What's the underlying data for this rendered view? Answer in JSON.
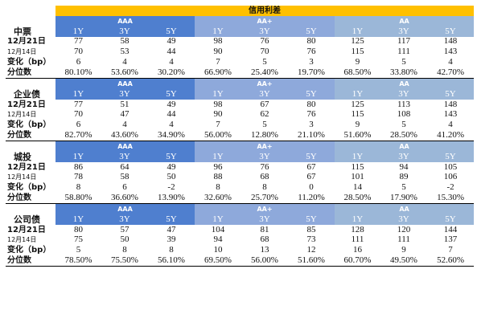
{
  "title": "信用利差",
  "groups": [
    "AAA",
    "AA+",
    "AA"
  ],
  "tenors": [
    "1Y",
    "3Y",
    "5Y"
  ],
  "row_labels": {
    "d1": "12月21日",
    "d2": "12月14日",
    "chg": "变化（bp）",
    "pct": "分位数"
  },
  "sections": [
    {
      "name": "中票",
      "d1": [
        "77",
        "58",
        "49",
        "98",
        "76",
        "80",
        "125",
        "117",
        "148"
      ],
      "d2": [
        "70",
        "53",
        "44",
        "90",
        "70",
        "76",
        "115",
        "111",
        "143"
      ],
      "chg": [
        "6",
        "4",
        "4",
        "7",
        "5",
        "3",
        "9",
        "5",
        "4"
      ],
      "pct": [
        "80.10%",
        "53.60%",
        "30.20%",
        "66.90%",
        "25.40%",
        "19.70%",
        "68.50%",
        "33.80%",
        "42.70%"
      ]
    },
    {
      "name": "企业债",
      "d1": [
        "77",
        "51",
        "49",
        "98",
        "67",
        "80",
        "125",
        "113",
        "148"
      ],
      "d2": [
        "70",
        "47",
        "44",
        "90",
        "62",
        "76",
        "115",
        "108",
        "143"
      ],
      "chg": [
        "6",
        "4",
        "4",
        "7",
        "5",
        "3",
        "9",
        "5",
        "4"
      ],
      "pct": [
        "82.70%",
        "43.60%",
        "34.90%",
        "56.00%",
        "12.80%",
        "21.10%",
        "51.60%",
        "28.50%",
        "41.20%"
      ]
    },
    {
      "name": "城投",
      "d1": [
        "86",
        "64",
        "49",
        "96",
        "76",
        "67",
        "115",
        "94",
        "105"
      ],
      "d2": [
        "78",
        "58",
        "50",
        "88",
        "68",
        "67",
        "101",
        "89",
        "106"
      ],
      "chg": [
        "8",
        "6",
        "-2",
        "8",
        "8",
        "0",
        "14",
        "5",
        "-2"
      ],
      "pct": [
        "58.80%",
        "36.60%",
        "13.90%",
        "32.60%",
        "25.70%",
        "11.20%",
        "28.50%",
        "17.90%",
        "15.30%"
      ]
    },
    {
      "name": "公司债",
      "d1": [
        "80",
        "57",
        "47",
        "104",
        "81",
        "85",
        "128",
        "120",
        "144"
      ],
      "d2": [
        "75",
        "50",
        "39",
        "94",
        "68",
        "73",
        "111",
        "111",
        "137"
      ],
      "chg": [
        "5",
        "8",
        "8",
        "10",
        "13",
        "12",
        "16",
        "9",
        "7"
      ],
      "pct": [
        "78.50%",
        "75.50%",
        "56.10%",
        "69.50%",
        "56.00%",
        "51.60%",
        "60.70%",
        "49.50%",
        "52.60%"
      ]
    }
  ]
}
